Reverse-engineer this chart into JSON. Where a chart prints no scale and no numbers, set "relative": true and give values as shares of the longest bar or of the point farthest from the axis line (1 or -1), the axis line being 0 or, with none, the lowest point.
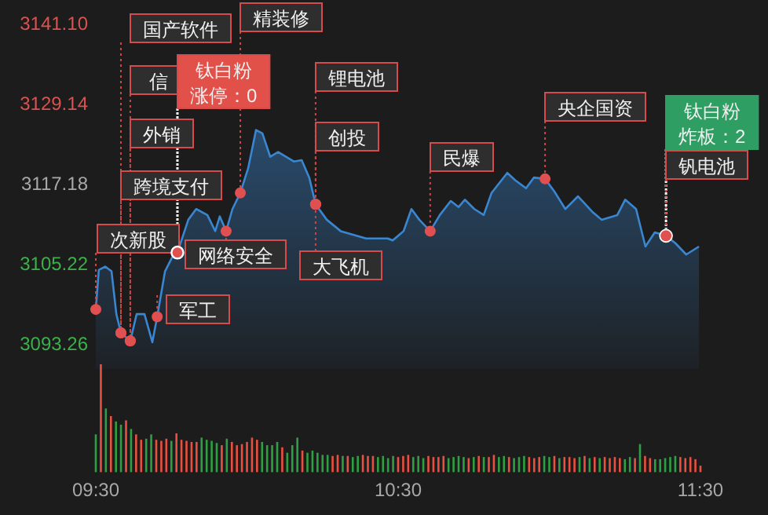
{
  "chart_data": [
    {
      "type": "area",
      "xlim": [
        9.5,
        11.5
      ],
      "ylim": [
        3093.26,
        3141.1
      ],
      "yticks": [
        {
          "value": 3093.26,
          "label": "3093.26"
        },
        {
          "value": 3105.22,
          "label": "3105.22"
        },
        {
          "value": 3117.18,
          "label": "3117.18"
        },
        {
          "value": 3129.14,
          "label": "3129.14"
        },
        {
          "value": 3141.1,
          "label": "3141.10"
        }
      ],
      "tick_labels": "y",
      "series": [
        {
          "color": "#3a86d0",
          "x": [
            9.5,
            9.51,
            9.531,
            9.552,
            9.568,
            9.583,
            9.614,
            9.635,
            9.661,
            9.687,
            9.703,
            9.729,
            9.755,
            9.77,
            9.806,
            9.832,
            9.869,
            9.895,
            9.91,
            9.931,
            9.952,
            9.978,
            10.004,
            10.03,
            10.051,
            10.077,
            10.103,
            10.129,
            10.155,
            10.181,
            10.206,
            10.227,
            10.264,
            10.31,
            10.394,
            10.466,
            10.482,
            10.518,
            10.544,
            10.57,
            10.606,
            10.638,
            10.674,
            10.7,
            10.721,
            10.752,
            10.783,
            10.809,
            10.861,
            10.887,
            10.923,
            10.949,
            10.986,
            11.017,
            11.053,
            11.095,
            11.142,
            11.173,
            11.225,
            11.251,
            11.287,
            11.318,
            11.349,
            11.386,
            11.417,
            11.453,
            11.495
          ],
          "values": [
            3098.4,
            3104.3,
            3104.8,
            3104.1,
            3097.7,
            3094.9,
            3093.7,
            3097.7,
            3097.7,
            3093.5,
            3097.3,
            3104.1,
            3106.4,
            3106.9,
            3111.8,
            3113.4,
            3112.5,
            3110.1,
            3112.3,
            3110.1,
            3113.4,
            3115.8,
            3119.5,
            3125.2,
            3124.7,
            3121.2,
            3121.9,
            3121.2,
            3120.5,
            3120.7,
            3118.1,
            3114.1,
            3111.8,
            3110.1,
            3109.0,
            3109.0,
            3108.7,
            3110.1,
            3113.4,
            3111.8,
            3110.1,
            3112.5,
            3114.6,
            3113.7,
            3114.8,
            3113.4,
            3112.5,
            3115.8,
            3118.8,
            3117.7,
            3116.5,
            3118.1,
            3117.9,
            3116.0,
            3113.4,
            3115.3,
            3113.0,
            3111.8,
            3112.5,
            3114.8,
            3113.4,
            3107.8,
            3109.9,
            3109.4,
            3108.3,
            3106.6,
            3107.8
          ]
        }
      ],
      "annotations": [
        {
          "text": "国产软件",
          "x": 9.583,
          "y": 3094.9
        },
        {
          "text": "信",
          "x": 9.614,
          "y": 3093.7
        },
        {
          "text": "外销",
          "x": 9.614,
          "y": 3093.7
        },
        {
          "text": "跨境支付",
          "x": 9.583,
          "y": 3094.9
        },
        {
          "text": "次新股",
          "x": 9.5,
          "y": 3098.4
        },
        {
          "text": "军工",
          "x": 9.703,
          "y": 3097.3
        },
        {
          "text": "钛白粉涨停：0",
          "x": 9.77,
          "y": 3106.9
        },
        {
          "text": "精装修",
          "x": 9.978,
          "y": 3115.8
        },
        {
          "text": "网络安全",
          "x": 9.931,
          "y": 3110.1
        },
        {
          "text": "锂电池",
          "x": 10.227,
          "y": 3114.1
        },
        {
          "text": "创投",
          "x": 10.227,
          "y": 3114.1
        },
        {
          "text": "大飞机",
          "x": 10.227,
          "y": 3114.1
        },
        {
          "text": "民爆",
          "x": 10.606,
          "y": 3110.1
        },
        {
          "text": "央企国资",
          "x": 10.986,
          "y": 3117.9
        },
        {
          "text": "钛白粉炸板：2",
          "x": 11.386,
          "y": 3109.4
        },
        {
          "text": "钒电池",
          "x": 11.386,
          "y": 3109.4
        }
      ]
    },
    {
      "type": "bar",
      "relative": true,
      "xlim": [
        9.5,
        11.5
      ],
      "xticks": [
        {
          "value": 9.5,
          "label": "09:30"
        },
        {
          "value": 10.5,
          "label": "10:30"
        },
        {
          "value": 11.5,
          "label": "11:30"
        }
      ],
      "tick_labels": "x",
      "series": [
        {
          "x": [
            9.5,
            9.5167,
            9.5333,
            9.55,
            9.5667,
            9.5833,
            9.6,
            9.6167,
            9.6333,
            9.65,
            9.6667,
            9.6833,
            9.7,
            9.7167,
            9.7333,
            9.75,
            9.7667,
            9.7833,
            9.8,
            9.8167,
            9.8333,
            9.85,
            9.8667,
            9.8833,
            9.9,
            9.9167,
            9.9333,
            9.95,
            9.9667,
            9.9833,
            10.0,
            10.0167,
            10.0333,
            10.05,
            10.0667,
            10.0833,
            10.1,
            10.1167,
            10.1333,
            10.15,
            10.1667,
            10.1833,
            10.2,
            10.2167,
            10.2333,
            10.25,
            10.2667,
            10.2833,
            10.3,
            10.3167,
            10.3333,
            10.35,
            10.3667,
            10.3833,
            10.4,
            10.4167,
            10.4333,
            10.45,
            10.4667,
            10.4833,
            10.5,
            10.5167,
            10.5333,
            10.55,
            10.5667,
            10.5833,
            10.6,
            10.6167,
            10.6333,
            10.65,
            10.6667,
            10.6833,
            10.7,
            10.7167,
            10.7333,
            10.75,
            10.7667,
            10.7833,
            10.8,
            10.8167,
            10.8333,
            10.85,
            10.8667,
            10.8833,
            10.9,
            10.9167,
            10.9333,
            10.95,
            10.9667,
            10.9833,
            11.0,
            11.0167,
            11.0333,
            11.05,
            11.0667,
            11.0833,
            11.1,
            11.1167,
            11.1333,
            11.15,
            11.1667,
            11.1833,
            11.2,
            11.2167,
            11.2333,
            11.25,
            11.2667,
            11.2833,
            11.3,
            11.3167,
            11.3333,
            11.35,
            11.3667,
            11.3833,
            11.4,
            11.4167,
            11.4333,
            11.45,
            11.4667,
            11.4833,
            11.5
          ],
          "values": [
            0.35,
            1,
            0.59,
            0.52,
            0.47,
            0.44,
            0.48,
            0.4,
            0.35,
            0.3,
            0.31,
            0.35,
            0.3,
            0.29,
            0.31,
            0.29,
            0.36,
            0.3,
            0.29,
            0.28,
            0.28,
            0.32,
            0.3,
            0.29,
            0.27,
            0.25,
            0.31,
            0.28,
            0.25,
            0.26,
            0.28,
            0.32,
            0.3,
            0.28,
            0.25,
            0.25,
            0.28,
            0.23,
            0.18,
            0.25,
            0.32,
            0.2,
            0.18,
            0.2,
            0.18,
            0.16,
            0.16,
            0.15,
            0.16,
            0.15,
            0.15,
            0.14,
            0.15,
            0.16,
            0.15,
            0.15,
            0.14,
            0.15,
            0.13,
            0.15,
            0.14,
            0.15,
            0.16,
            0.14,
            0.15,
            0.13,
            0.15,
            0.14,
            0.14,
            0.15,
            0.13,
            0.14,
            0.15,
            0.14,
            0.13,
            0.14,
            0.15,
            0.14,
            0.14,
            0.16,
            0.14,
            0.15,
            0.14,
            0.13,
            0.14,
            0.15,
            0.14,
            0.13,
            0.14,
            0.15,
            0.14,
            0.15,
            0.13,
            0.14,
            0.14,
            0.13,
            0.14,
            0.15,
            0.13,
            0.14,
            0.13,
            0.14,
            0.13,
            0.14,
            0.13,
            0.12,
            0.14,
            0.13,
            0.26,
            0.15,
            0.13,
            0.12,
            0.12,
            0.13,
            0.14,
            0.15,
            0.14,
            0.13,
            0.14,
            0.12,
            0.06
          ],
          "colors": [
            "#2ea043",
            "#e8503f",
            "#2ea043",
            "#e8503f",
            "#2ea043",
            "#2ea043",
            "#e8503f",
            "#2ea043",
            "#e8503f",
            "#e8503f",
            "#2ea043",
            "#2ea043",
            "#e8503f",
            "#e8503f",
            "#e8503f",
            "#2ea043",
            "#e8503f",
            "#e8503f",
            "#e8503f",
            "#e8503f",
            "#e8503f",
            "#2ea043",
            "#2ea043",
            "#2ea043",
            "#2ea043",
            "#e8503f",
            "#2ea043",
            "#e8503f",
            "#e8503f",
            "#e8503f",
            "#e8503f",
            "#e8503f",
            "#e8503f",
            "#2ea043",
            "#2ea043",
            "#2ea043",
            "#2ea043",
            "#e8503f",
            "#2ea043",
            "#2ea043",
            "#2ea043",
            "#e8503f",
            "#2ea043",
            "#2ea043",
            "#2ea043",
            "#2ea043",
            "#2ea043",
            "#e8503f",
            "#e8503f",
            "#2ea043",
            "#e8503f",
            "#2ea043",
            "#2ea043",
            "#e8503f",
            "#e8503f",
            "#e8503f",
            "#2ea043",
            "#2ea043",
            "#2ea043",
            "#2ea043",
            "#e8503f",
            "#e8503f",
            "#e8503f",
            "#2ea043",
            "#2ea043",
            "#2ea043",
            "#e8503f",
            "#e8503f",
            "#e8503f",
            "#e8503f",
            "#2ea043",
            "#2ea043",
            "#2ea043",
            "#2ea043",
            "#e8503f",
            "#2ea043",
            "#e8503f",
            "#2ea043",
            "#e8503f",
            "#e8503f",
            "#2ea043",
            "#2ea043",
            "#e8503f",
            "#2ea043",
            "#2ea043",
            "#2ea043",
            "#e8503f",
            "#e8503f",
            "#e8503f",
            "#2ea043",
            "#2ea043",
            "#e8503f",
            "#2ea043",
            "#e8503f",
            "#e8503f",
            "#e8503f",
            "#2ea043",
            "#e8503f",
            "#2ea043",
            "#e8503f",
            "#2ea043",
            "#e8503f",
            "#e8503f",
            "#e8503f",
            "#e8503f",
            "#2ea043",
            "#2ea043",
            "#e8503f",
            "#2ea043",
            "#e8503f",
            "#e8503f",
            "#2ea043",
            "#2ea043",
            "#2ea043",
            "#2ea043",
            "#2ea043",
            "#e8503f",
            "#e8503f",
            "#e8503f",
            "#e8503f",
            "#e8503f"
          ]
        }
      ]
    }
  ]
}
